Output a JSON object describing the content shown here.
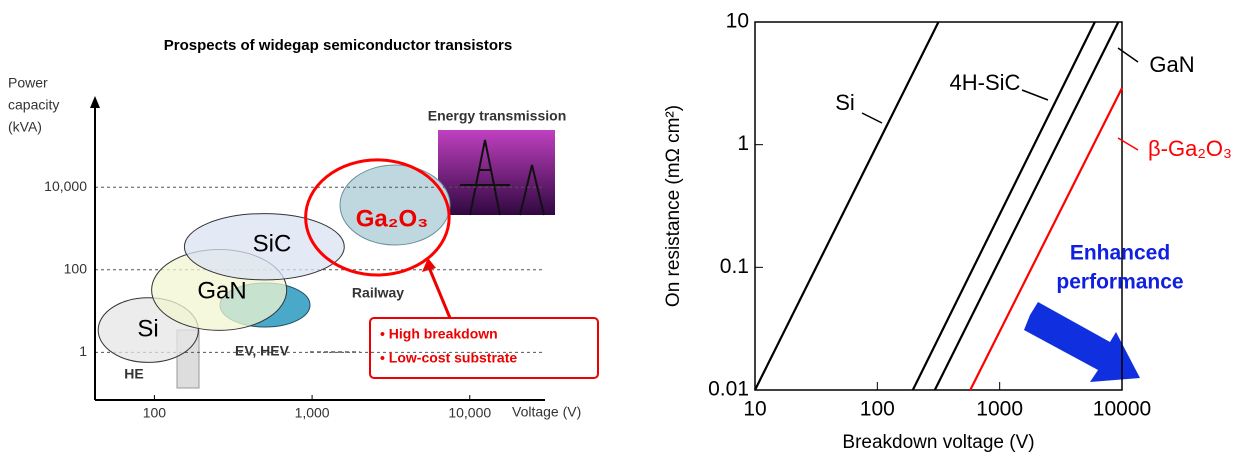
{
  "chart_data": [
    {
      "type": "region",
      "title": "Prospects of widegap semiconductor transistors",
      "y_label": [
        "Power",
        "capacity",
        "(kVA)"
      ],
      "x_label": "Voltage (V)",
      "log_x": true,
      "log_y": true,
      "xlim": [
        42,
        30000
      ],
      "ylim": [
        0.07,
        1300000
      ],
      "xticks": [
        100,
        {
          "value": 1000,
          "label": "1,000"
        },
        {
          "value": 10000,
          "label": "10,000"
        }
      ],
      "yticks": [
        1,
        100,
        {
          "value": 10000,
          "label": "10,000"
        }
      ],
      "grid": true,
      "regions": [
        {
          "name": "Si",
          "color": "#e6e6e6",
          "x": [
            44,
            190
          ],
          "y": [
            0.57,
            21
          ]
        },
        {
          "name": "GaN",
          "color": "#f2f5d2",
          "x": [
            96,
            690
          ],
          "y": [
            3.4,
            310
          ]
        },
        {
          "name": "SiC",
          "color": "#d9e3f3",
          "x": [
            155,
            1600
          ],
          "y": [
            57,
            2300
          ]
        },
        {
          "name": "Ga₂O₃",
          "color": "#ff0000",
          "x": [
            910,
            7400
          ],
          "y": [
            75,
            46000
          ]
        }
      ],
      "annotations": [
        "Energy transmission",
        "Railway",
        "EV, HEV",
        "HE"
      ],
      "callout": [
        "• High breakdown",
        "• Low-cost substrate"
      ]
    },
    {
      "type": "line",
      "x_label": "Breakdown voltage (V)",
      "y_label": "On resistance (mΩ cm²)",
      "log_x": true,
      "log_y": true,
      "xlim": [
        10,
        10000
      ],
      "ylim": [
        0.01,
        10
      ],
      "xticks": [
        10,
        100,
        1000,
        10000
      ],
      "yticks": [
        0.01,
        0.1,
        1,
        10
      ],
      "series": [
        {
          "name": "Si",
          "color": "#000000",
          "x": [
            10,
            316
          ],
          "values": [
            0.01,
            10
          ]
        },
        {
          "name": "4H-SiC",
          "color": "#000000",
          "x": [
            195,
            6000
          ],
          "values": [
            0.01,
            10
          ]
        },
        {
          "name": "GaN",
          "color": "#000000",
          "x": [
            295,
            9330
          ],
          "values": [
            0.01,
            10
          ]
        },
        {
          "name": "β-Ga₂O₃",
          "color": "#ff0000",
          "x": [
            575,
            10000
          ],
          "values": [
            0.01,
            2.9
          ]
        }
      ],
      "annotation": [
        "Enhanced",
        "performance"
      ]
    }
  ]
}
